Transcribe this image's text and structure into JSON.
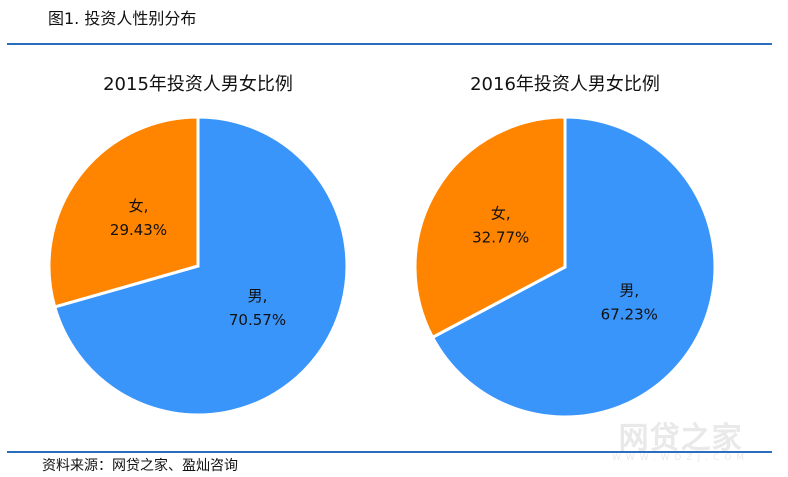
{
  "figure_title": "图1. 投资人性别分布",
  "source": "资料来源：网贷之家、盈灿咨询",
  "watermark": {
    "main": "网贷之家",
    "sub": "WWW.WDZJ.COM"
  },
  "colors": {
    "male": "#3a95fa",
    "female": "#ff8400",
    "rule": "#2a6ebd"
  },
  "chart_data": [
    {
      "type": "pie",
      "title": "2015年投资人男女比例",
      "slices": [
        {
          "label": "男",
          "value": 70.57,
          "display": "70.57%"
        },
        {
          "label": "女",
          "value": 29.43,
          "display": "29.43%"
        }
      ]
    },
    {
      "type": "pie",
      "title": "2016年投资人男女比例",
      "slices": [
        {
          "label": "男",
          "value": 67.23,
          "display": "67.23%"
        },
        {
          "label": "女",
          "value": 32.77,
          "display": "32.77%"
        }
      ]
    }
  ]
}
